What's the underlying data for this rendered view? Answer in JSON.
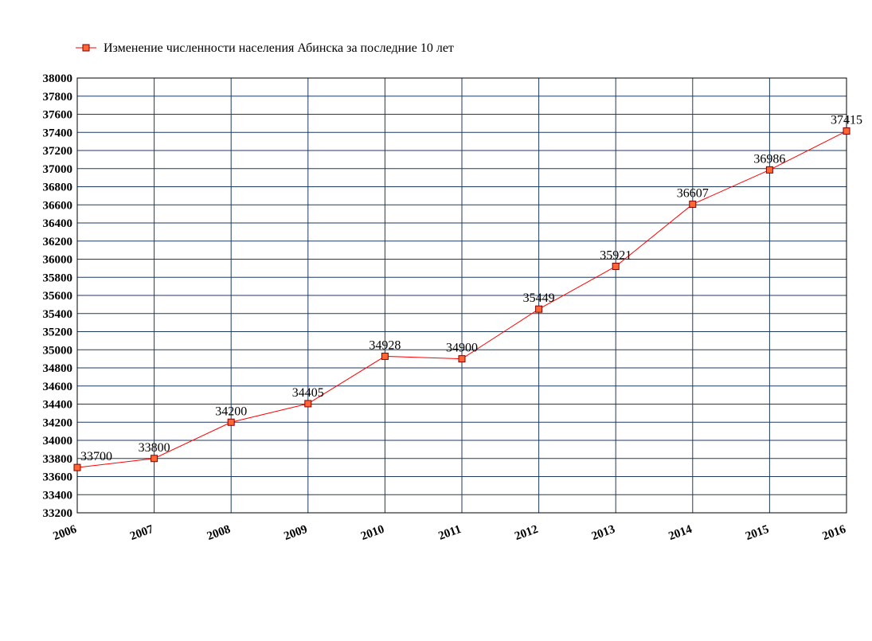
{
  "chart_data": {
    "type": "line",
    "x": [
      2006,
      2007,
      2008,
      2009,
      2010,
      2011,
      2012,
      2013,
      2014,
      2015,
      2016
    ],
    "series": [
      {
        "name": "Изменение численности населения Абинска за последние 10 лет",
        "color": "#ff0000",
        "marker_color": "#ff6633",
        "values": [
          33700,
          33800,
          34200,
          34405,
          34928,
          34900,
          35449,
          35921,
          36607,
          36986,
          37415
        ]
      }
    ],
    "xlim": [
      2006,
      2016
    ],
    "xticks": [
      2006,
      2007,
      2008,
      2009,
      2010,
      2011,
      2012,
      2013,
      2014,
      2015,
      2016
    ],
    "ylim": [
      33200,
      38000
    ],
    "yticks": [
      33200,
      33400,
      33600,
      33800,
      34000,
      34200,
      34400,
      34600,
      34800,
      35000,
      35200,
      35400,
      35600,
      35800,
      36000,
      36200,
      36400,
      36600,
      36800,
      37000,
      37200,
      37400,
      37600,
      37800,
      38000
    ],
    "grid": true,
    "grid_color": "#1f3a5f",
    "legend": "top-left"
  }
}
